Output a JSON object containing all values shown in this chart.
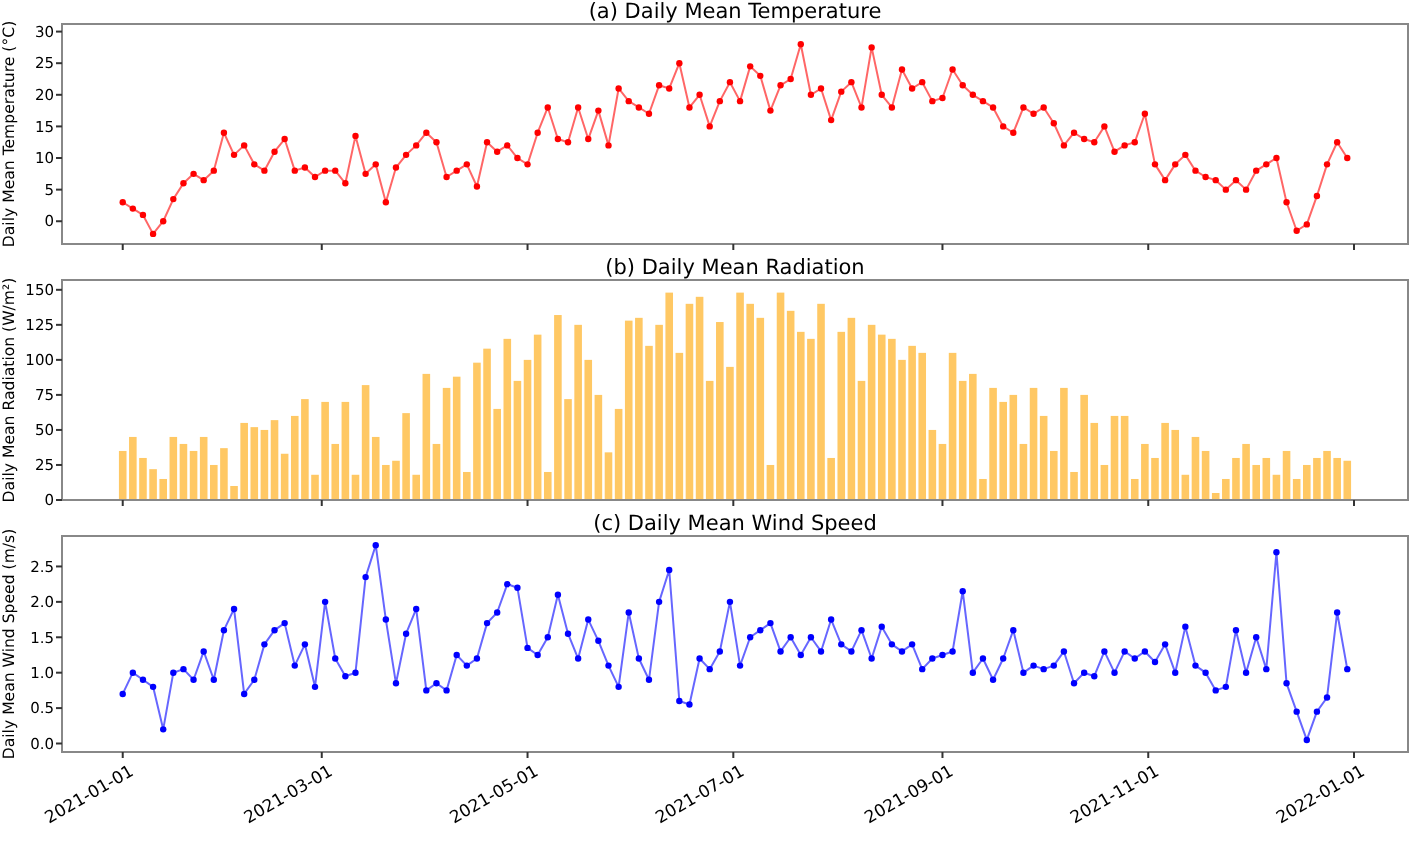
{
  "chart_data": [
    {
      "type": "line",
      "title": "(a) Daily Mean Temperature",
      "ylabel": "Daily Mean Temperature (°C)",
      "color": "#ff0000",
      "marker": "circle",
      "line_style": "solid",
      "grid": false,
      "tick_labels": "y",
      "x": [
        "2021-01-01",
        "2021-01-04",
        "2021-01-07",
        "2021-01-10",
        "2021-01-13",
        "2021-01-16",
        "2021-01-19",
        "2021-01-22",
        "2021-01-25",
        "2021-01-28",
        "2021-01-31",
        "2021-02-03",
        "2021-02-06",
        "2021-02-09",
        "2021-02-12",
        "2021-02-15",
        "2021-02-18",
        "2021-02-21",
        "2021-02-24",
        "2021-02-27",
        "2021-03-02",
        "2021-03-05",
        "2021-03-08",
        "2021-03-11",
        "2021-03-14",
        "2021-03-17",
        "2021-03-20",
        "2021-03-23",
        "2021-03-26",
        "2021-03-29",
        "2021-04-01",
        "2021-04-04",
        "2021-04-07",
        "2021-04-10",
        "2021-04-13",
        "2021-04-16",
        "2021-04-19",
        "2021-04-22",
        "2021-04-25",
        "2021-04-28",
        "2021-05-01",
        "2021-05-04",
        "2021-05-07",
        "2021-05-10",
        "2021-05-13",
        "2021-05-16",
        "2021-05-19",
        "2021-05-22",
        "2021-05-25",
        "2021-05-28",
        "2021-05-31",
        "2021-06-03",
        "2021-06-06",
        "2021-06-09",
        "2021-06-12",
        "2021-06-15",
        "2021-06-18",
        "2021-06-21",
        "2021-06-24",
        "2021-06-27",
        "2021-06-30",
        "2021-07-03",
        "2021-07-06",
        "2021-07-09",
        "2021-07-12",
        "2021-07-15",
        "2021-07-18",
        "2021-07-21",
        "2021-07-24",
        "2021-07-27",
        "2021-07-30",
        "2021-08-02",
        "2021-08-05",
        "2021-08-08",
        "2021-08-11",
        "2021-08-14",
        "2021-08-17",
        "2021-08-20",
        "2021-08-23",
        "2021-08-26",
        "2021-08-29",
        "2021-09-01",
        "2021-09-04",
        "2021-09-07",
        "2021-09-10",
        "2021-09-13",
        "2021-09-16",
        "2021-09-19",
        "2021-09-22",
        "2021-09-25",
        "2021-09-28",
        "2021-10-01",
        "2021-10-04",
        "2021-10-07",
        "2021-10-10",
        "2021-10-13",
        "2021-10-16",
        "2021-10-19",
        "2021-10-22",
        "2021-10-25",
        "2021-10-28",
        "2021-10-31",
        "2021-11-03",
        "2021-11-06",
        "2021-11-09",
        "2021-11-12",
        "2021-11-15",
        "2021-11-18",
        "2021-11-21",
        "2021-11-24",
        "2021-11-27",
        "2021-11-30",
        "2021-12-03",
        "2021-12-06",
        "2021-12-09",
        "2021-12-12",
        "2021-12-15",
        "2021-12-18",
        "2021-12-21",
        "2021-12-24",
        "2021-12-27",
        "2021-12-30"
      ],
      "values": [
        3,
        2,
        1,
        -2,
        0,
        3.5,
        6,
        7.5,
        6.5,
        8,
        14,
        10.5,
        12,
        9,
        8,
        11,
        13,
        8,
        8.5,
        7,
        8,
        8,
        6,
        13.5,
        7.5,
        9,
        3,
        8.5,
        10.5,
        12,
        14,
        12.5,
        7,
        8,
        9,
        5.5,
        12.5,
        11,
        12,
        10,
        9,
        14,
        18,
        13,
        12.5,
        18,
        13,
        17.5,
        12,
        21,
        19,
        18,
        17,
        21.5,
        21,
        25,
        18,
        20,
        15,
        19,
        22,
        19,
        24.5,
        23,
        17.5,
        21.5,
        22.5,
        28,
        20,
        21,
        16,
        20.5,
        22,
        18,
        27.5,
        20,
        18,
        24,
        21,
        22,
        19,
        19.5,
        24,
        21.5,
        20,
        19,
        18,
        15,
        14,
        18,
        17,
        18,
        15.5,
        12,
        14,
        13,
        12.5,
        15,
        11,
        12,
        12.5,
        17,
        9,
        6.5,
        9,
        10.5,
        8,
        7,
        6.5,
        5,
        6.5,
        5,
        8,
        9,
        10,
        3,
        -1.5,
        -0.5,
        4,
        9,
        12.5,
        10
      ],
      "xlim": [
        "2020-12-14",
        "2022-01-17"
      ],
      "xticks": [
        "2021-01-01",
        "2021-03-01",
        "2021-05-01",
        "2021-07-01",
        "2021-09-01",
        "2021-11-01",
        "2022-01-01"
      ],
      "ylim": [
        -3.6,
        31.2
      ],
      "yticks": [
        0,
        5,
        10,
        15,
        20,
        25,
        30
      ]
    },
    {
      "type": "bar",
      "title": "(b) Daily Mean Radiation",
      "ylabel": "Daily Mean Radiation (W/m²)",
      "color": "#ffc864",
      "grid": false,
      "tick_labels": "y",
      "x": [
        "2021-01-01",
        "2021-01-04",
        "2021-01-07",
        "2021-01-10",
        "2021-01-13",
        "2021-01-16",
        "2021-01-19",
        "2021-01-22",
        "2021-01-25",
        "2021-01-28",
        "2021-01-31",
        "2021-02-03",
        "2021-02-06",
        "2021-02-09",
        "2021-02-12",
        "2021-02-15",
        "2021-02-18",
        "2021-02-21",
        "2021-02-24",
        "2021-02-27",
        "2021-03-02",
        "2021-03-05",
        "2021-03-08",
        "2021-03-11",
        "2021-03-14",
        "2021-03-17",
        "2021-03-20",
        "2021-03-23",
        "2021-03-26",
        "2021-03-29",
        "2021-04-01",
        "2021-04-04",
        "2021-04-07",
        "2021-04-10",
        "2021-04-13",
        "2021-04-16",
        "2021-04-19",
        "2021-04-22",
        "2021-04-25",
        "2021-04-28",
        "2021-05-01",
        "2021-05-04",
        "2021-05-07",
        "2021-05-10",
        "2021-05-13",
        "2021-05-16",
        "2021-05-19",
        "2021-05-22",
        "2021-05-25",
        "2021-05-28",
        "2021-05-31",
        "2021-06-03",
        "2021-06-06",
        "2021-06-09",
        "2021-06-12",
        "2021-06-15",
        "2021-06-18",
        "2021-06-21",
        "2021-06-24",
        "2021-06-27",
        "2021-06-30",
        "2021-07-03",
        "2021-07-06",
        "2021-07-09",
        "2021-07-12",
        "2021-07-15",
        "2021-07-18",
        "2021-07-21",
        "2021-07-24",
        "2021-07-27",
        "2021-07-30",
        "2021-08-02",
        "2021-08-05",
        "2021-08-08",
        "2021-08-11",
        "2021-08-14",
        "2021-08-17",
        "2021-08-20",
        "2021-08-23",
        "2021-08-26",
        "2021-08-29",
        "2021-09-01",
        "2021-09-04",
        "2021-09-07",
        "2021-09-10",
        "2021-09-13",
        "2021-09-16",
        "2021-09-19",
        "2021-09-22",
        "2021-09-25",
        "2021-09-28",
        "2021-10-01",
        "2021-10-04",
        "2021-10-07",
        "2021-10-10",
        "2021-10-13",
        "2021-10-16",
        "2021-10-19",
        "2021-10-22",
        "2021-10-25",
        "2021-10-28",
        "2021-10-31",
        "2021-11-03",
        "2021-11-06",
        "2021-11-09",
        "2021-11-12",
        "2021-11-15",
        "2021-11-18",
        "2021-11-21",
        "2021-11-24",
        "2021-11-27",
        "2021-11-30",
        "2021-12-03",
        "2021-12-06",
        "2021-12-09",
        "2021-12-12",
        "2021-12-15",
        "2021-12-18",
        "2021-12-21",
        "2021-12-24",
        "2021-12-27",
        "2021-12-30"
      ],
      "values": [
        35,
        45,
        30,
        22,
        15,
        45,
        40,
        35,
        45,
        25,
        37,
        10,
        55,
        52,
        50,
        57,
        33,
        60,
        72,
        18,
        70,
        40,
        70,
        18,
        82,
        45,
        25,
        28,
        62,
        18,
        90,
        40,
        80,
        88,
        20,
        98,
        108,
        65,
        115,
        85,
        100,
        118,
        20,
        132,
        72,
        125,
        100,
        75,
        34,
        65,
        128,
        130,
        110,
        125,
        148,
        105,
        140,
        145,
        85,
        127,
        95,
        148,
        140,
        130,
        25,
        148,
        135,
        120,
        115,
        140,
        30,
        120,
        130,
        85,
        125,
        118,
        115,
        100,
        110,
        105,
        50,
        40,
        105,
        85,
        90,
        15,
        80,
        70,
        75,
        40,
        80,
        60,
        35,
        80,
        20,
        75,
        55,
        25,
        60,
        60,
        15,
        40,
        30,
        55,
        50,
        18,
        45,
        35,
        5,
        15,
        30,
        40,
        25,
        30,
        18,
        35,
        15,
        25,
        30,
        35,
        30,
        28
      ],
      "xlim": [
        "2020-12-14",
        "2022-01-17"
      ],
      "xticks": [
        "2021-01-01",
        "2021-03-01",
        "2021-05-01",
        "2021-07-01",
        "2021-09-01",
        "2021-11-01",
        "2022-01-01"
      ],
      "ylim": [
        0,
        157
      ],
      "yticks": [
        0,
        25,
        50,
        75,
        100,
        125,
        150
      ]
    },
    {
      "type": "line",
      "title": "(c) Daily Mean Wind Speed",
      "ylabel": "Daily Mean Wind Speed (m/s)",
      "color": "#0000ff",
      "marker": "circle",
      "line_style": "solid",
      "grid": false,
      "x": [
        "2021-01-01",
        "2021-01-04",
        "2021-01-07",
        "2021-01-10",
        "2021-01-13",
        "2021-01-16",
        "2021-01-19",
        "2021-01-22",
        "2021-01-25",
        "2021-01-28",
        "2021-01-31",
        "2021-02-03",
        "2021-02-06",
        "2021-02-09",
        "2021-02-12",
        "2021-02-15",
        "2021-02-18",
        "2021-02-21",
        "2021-02-24",
        "2021-02-27",
        "2021-03-02",
        "2021-03-05",
        "2021-03-08",
        "2021-03-11",
        "2021-03-14",
        "2021-03-17",
        "2021-03-20",
        "2021-03-23",
        "2021-03-26",
        "2021-03-29",
        "2021-04-01",
        "2021-04-04",
        "2021-04-07",
        "2021-04-10",
        "2021-04-13",
        "2021-04-16",
        "2021-04-19",
        "2021-04-22",
        "2021-04-25",
        "2021-04-28",
        "2021-05-01",
        "2021-05-04",
        "2021-05-07",
        "2021-05-10",
        "2021-05-13",
        "2021-05-16",
        "2021-05-19",
        "2021-05-22",
        "2021-05-25",
        "2021-05-28",
        "2021-05-31",
        "2021-06-03",
        "2021-06-06",
        "2021-06-09",
        "2021-06-12",
        "2021-06-15",
        "2021-06-18",
        "2021-06-21",
        "2021-06-24",
        "2021-06-27",
        "2021-06-30",
        "2021-07-03",
        "2021-07-06",
        "2021-07-09",
        "2021-07-12",
        "2021-07-15",
        "2021-07-18",
        "2021-07-21",
        "2021-07-24",
        "2021-07-27",
        "2021-07-30",
        "2021-08-02",
        "2021-08-05",
        "2021-08-08",
        "2021-08-11",
        "2021-08-14",
        "2021-08-17",
        "2021-08-20",
        "2021-08-23",
        "2021-08-26",
        "2021-08-29",
        "2021-09-01",
        "2021-09-04",
        "2021-09-07",
        "2021-09-10",
        "2021-09-13",
        "2021-09-16",
        "2021-09-19",
        "2021-09-22",
        "2021-09-25",
        "2021-09-28",
        "2021-10-01",
        "2021-10-04",
        "2021-10-07",
        "2021-10-10",
        "2021-10-13",
        "2021-10-16",
        "2021-10-19",
        "2021-10-22",
        "2021-10-25",
        "2021-10-28",
        "2021-10-31",
        "2021-11-03",
        "2021-11-06",
        "2021-11-09",
        "2021-11-12",
        "2021-11-15",
        "2021-11-18",
        "2021-11-21",
        "2021-11-24",
        "2021-11-27",
        "2021-11-30",
        "2021-12-03",
        "2021-12-06",
        "2021-12-09",
        "2021-12-12",
        "2021-12-15",
        "2021-12-18",
        "2021-12-21",
        "2021-12-24",
        "2021-12-27",
        "2021-12-30"
      ],
      "values": [
        0.7,
        1.0,
        0.9,
        0.8,
        0.2,
        1.0,
        1.05,
        0.9,
        1.3,
        0.9,
        1.6,
        1.9,
        0.7,
        0.9,
        1.4,
        1.6,
        1.7,
        1.1,
        1.4,
        0.8,
        2.0,
        1.2,
        0.95,
        1.0,
        2.35,
        2.8,
        1.75,
        0.85,
        1.55,
        1.9,
        0.75,
        0.85,
        0.75,
        1.25,
        1.1,
        1.2,
        1.7,
        1.85,
        2.25,
        2.2,
        1.35,
        1.25,
        1.5,
        2.1,
        1.55,
        1.2,
        1.75,
        1.45,
        1.1,
        0.8,
        1.85,
        1.2,
        0.9,
        2.0,
        2.45,
        0.6,
        0.55,
        1.2,
        1.05,
        1.3,
        2.0,
        1.1,
        1.5,
        1.6,
        1.7,
        1.3,
        1.5,
        1.25,
        1.5,
        1.3,
        1.75,
        1.4,
        1.3,
        1.6,
        1.2,
        1.65,
        1.4,
        1.3,
        1.4,
        1.05,
        1.2,
        1.25,
        1.3,
        2.15,
        1.0,
        1.2,
        0.9,
        1.2,
        1.6,
        1.0,
        1.1,
        1.05,
        1.1,
        1.3,
        0.85,
        1.0,
        0.95,
        1.3,
        1.0,
        1.3,
        1.2,
        1.3,
        1.15,
        1.4,
        1.0,
        1.65,
        1.1,
        1.0,
        0.75,
        0.8,
        1.6,
        1.0,
        1.5,
        1.05,
        2.7,
        0.85,
        0.45,
        0.05,
        0.45,
        0.65,
        1.85,
        1.05
      ],
      "xlim": [
        "2020-12-14",
        "2022-01-17"
      ],
      "xticks": [
        "2021-01-01",
        "2021-03-01",
        "2021-05-01",
        "2021-07-01",
        "2021-09-01",
        "2021-11-01",
        "2022-01-01"
      ],
      "ylim": [
        -0.12,
        2.93
      ],
      "yticks": [
        {
          "value": 0,
          "label": "0.0"
        },
        {
          "value": 0.5,
          "label": "0.5"
        },
        {
          "value": 1,
          "label": "1.0"
        },
        {
          "value": 1.5,
          "label": "1.5"
        },
        {
          "value": 2,
          "label": "2.0"
        },
        {
          "value": 2.5,
          "label": "2.5"
        }
      ]
    }
  ]
}
